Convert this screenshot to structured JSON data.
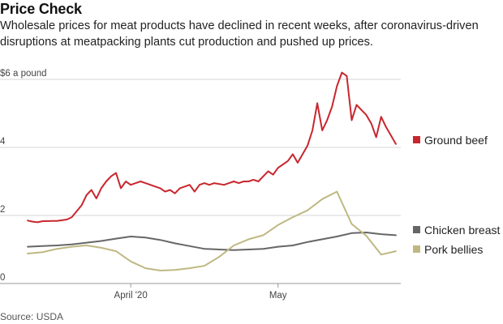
{
  "header": {
    "title": "Price Check",
    "subtitle": "Wholesale prices for meat products have declined in recent weeks, after coronavirus-driven disruptions at meatpacking plants cut production and pushed up prices."
  },
  "footer": {
    "source": "Source: USDA"
  },
  "chart_data": {
    "type": "line",
    "title": "Price Check",
    "ylabel": "$6 a pound",
    "ylim": [
      0,
      6
    ],
    "yticks": [
      {
        "value": 6,
        "label": "$6 a pound"
      },
      {
        "value": 4,
        "label": "4"
      },
      {
        "value": 2,
        "label": "2"
      },
      {
        "value": 0,
        "label": "0"
      }
    ],
    "xlim": [
      "2020-03-10",
      "2020-05-26"
    ],
    "xticks": [
      {
        "date": "2020-04-01",
        "label": "April '20"
      },
      {
        "date": "2020-05-01",
        "label": "May"
      }
    ],
    "grid": true,
    "legend": "right, at line ends",
    "colors": {
      "Ground beef": "#c8262d",
      "Chicken breast": "#666666",
      "Pork bellies": "#bfb882"
    },
    "series": [
      {
        "name": "Ground beef",
        "x": [
          "2020-03-11",
          "2020-03-12",
          "2020-03-13",
          "2020-03-14",
          "2020-03-16",
          "2020-03-17",
          "2020-03-18",
          "2020-03-19",
          "2020-03-20",
          "2020-03-22",
          "2020-03-23",
          "2020-03-24",
          "2020-03-25",
          "2020-03-26",
          "2020-03-27",
          "2020-03-28",
          "2020-03-29",
          "2020-03-30",
          "2020-03-31",
          "2020-04-01",
          "2020-04-02",
          "2020-04-03",
          "2020-04-04",
          "2020-04-06",
          "2020-04-07",
          "2020-04-08",
          "2020-04-09",
          "2020-04-10",
          "2020-04-11",
          "2020-04-13",
          "2020-04-14",
          "2020-04-15",
          "2020-04-16",
          "2020-04-17",
          "2020-04-18",
          "2020-04-20",
          "2020-04-21",
          "2020-04-22",
          "2020-04-23",
          "2020-04-24",
          "2020-04-25",
          "2020-04-26",
          "2020-04-27",
          "2020-04-28",
          "2020-04-29",
          "2020-04-30",
          "2020-05-01",
          "2020-05-02",
          "2020-05-03",
          "2020-05-04",
          "2020-05-05",
          "2020-05-06",
          "2020-05-07",
          "2020-05-08",
          "2020-05-09",
          "2020-05-10",
          "2020-05-11",
          "2020-05-12",
          "2020-05-13",
          "2020-05-14",
          "2020-05-15",
          "2020-05-16",
          "2020-05-17",
          "2020-05-18",
          "2020-05-19",
          "2020-05-20",
          "2020-05-21",
          "2020-05-22",
          "2020-05-23",
          "2020-05-24",
          "2020-05-25"
        ],
        "values": [
          1.85,
          1.82,
          1.8,
          1.83,
          1.84,
          1.84,
          1.86,
          1.88,
          1.95,
          2.3,
          2.6,
          2.75,
          2.5,
          2.8,
          3.0,
          3.15,
          3.25,
          2.8,
          3.0,
          2.9,
          2.95,
          3.0,
          2.95,
          2.85,
          2.8,
          2.7,
          2.75,
          2.65,
          2.8,
          2.9,
          2.7,
          2.9,
          2.95,
          2.9,
          2.95,
          2.9,
          2.95,
          3.0,
          2.95,
          3.0,
          3.0,
          3.05,
          3.0,
          3.15,
          3.3,
          3.2,
          3.4,
          3.5,
          3.6,
          3.8,
          3.55,
          3.8,
          4.05,
          4.5,
          5.3,
          4.5,
          4.8,
          5.2,
          5.8,
          6.2,
          6.1,
          4.8,
          5.25,
          5.1,
          4.95,
          4.7,
          4.3,
          4.9,
          4.6,
          4.35,
          4.1
        ]
      },
      {
        "name": "Chicken breast",
        "x": [
          "2020-03-11",
          "2020-03-14",
          "2020-03-17",
          "2020-03-20",
          "2020-03-23",
          "2020-03-26",
          "2020-03-29",
          "2020-04-01",
          "2020-04-04",
          "2020-04-07",
          "2020-04-10",
          "2020-04-13",
          "2020-04-16",
          "2020-04-19",
          "2020-04-22",
          "2020-04-25",
          "2020-04-28",
          "2020-05-01",
          "2020-05-04",
          "2020-05-07",
          "2020-05-10",
          "2020-05-13",
          "2020-05-16",
          "2020-05-19",
          "2020-05-22",
          "2020-05-25"
        ],
        "values": [
          1.08,
          1.1,
          1.12,
          1.15,
          1.2,
          1.25,
          1.32,
          1.38,
          1.35,
          1.28,
          1.18,
          1.1,
          1.02,
          1.0,
          0.98,
          1.0,
          1.02,
          1.08,
          1.12,
          1.22,
          1.3,
          1.38,
          1.48,
          1.5,
          1.45,
          1.42
        ]
      },
      {
        "name": "Pork bellies",
        "x": [
          "2020-03-11",
          "2020-03-14",
          "2020-03-17",
          "2020-03-20",
          "2020-03-23",
          "2020-03-26",
          "2020-03-29",
          "2020-04-01",
          "2020-04-04",
          "2020-04-07",
          "2020-04-10",
          "2020-04-13",
          "2020-04-16",
          "2020-04-19",
          "2020-04-22",
          "2020-04-25",
          "2020-04-28",
          "2020-05-01",
          "2020-05-04",
          "2020-05-07",
          "2020-05-10",
          "2020-05-13",
          "2020-05-16",
          "2020-05-19",
          "2020-05-22",
          "2020-05-25"
        ],
        "values": [
          0.88,
          0.92,
          1.02,
          1.08,
          1.12,
          1.05,
          0.95,
          0.65,
          0.45,
          0.38,
          0.4,
          0.45,
          0.52,
          0.78,
          1.12,
          1.3,
          1.42,
          1.72,
          1.95,
          2.15,
          2.48,
          2.7,
          1.75,
          1.4,
          0.85,
          0.95
        ]
      }
    ]
  }
}
